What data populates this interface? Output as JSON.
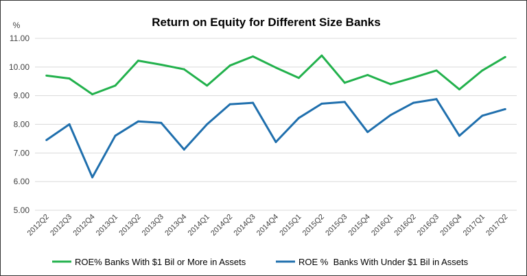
{
  "chart_data": {
    "type": "line",
    "title": "Return on Equity for Different Size Banks",
    "ylabel": "%",
    "xlabel": "",
    "ylim": [
      5,
      11
    ],
    "yticks": [
      "5.00",
      "6.00",
      "7.00",
      "8.00",
      "9.00",
      "10.00",
      "11.00"
    ],
    "grid": true,
    "legend_position": "bottom",
    "categories": [
      "2012Q2",
      "2012Q3",
      "2012Q4",
      "2013Q1",
      "2013Q2",
      "2013Q3",
      "2013Q4",
      "2014Q1",
      "2014Q2",
      "2014Q3",
      "2014Q4",
      "2015Q1",
      "2015Q2",
      "2015Q3",
      "2015Q4",
      "2016Q1",
      "2016Q2",
      "2016Q3",
      "2016Q4",
      "2017Q1",
      "2017Q2"
    ],
    "series": [
      {
        "name": "ROE% Banks With $1 Bil or More in Assets",
        "color": "#22b14c",
        "values": [
          9.7,
          9.6,
          9.05,
          9.35,
          10.22,
          10.08,
          9.92,
          9.35,
          10.05,
          10.37,
          9.98,
          9.62,
          10.4,
          9.45,
          9.72,
          9.4,
          9.63,
          9.88,
          9.22,
          9.88,
          10.35
        ]
      },
      {
        "name": "ROE %  Banks With Under $1 Bil in Assets",
        "color": "#1f6fad",
        "values": [
          7.45,
          8.0,
          6.15,
          7.6,
          8.1,
          8.05,
          7.12,
          8.0,
          8.7,
          8.75,
          7.38,
          8.22,
          8.72,
          8.78,
          7.73,
          8.32,
          8.75,
          8.88,
          7.6,
          8.3,
          8.53
        ]
      }
    ]
  }
}
